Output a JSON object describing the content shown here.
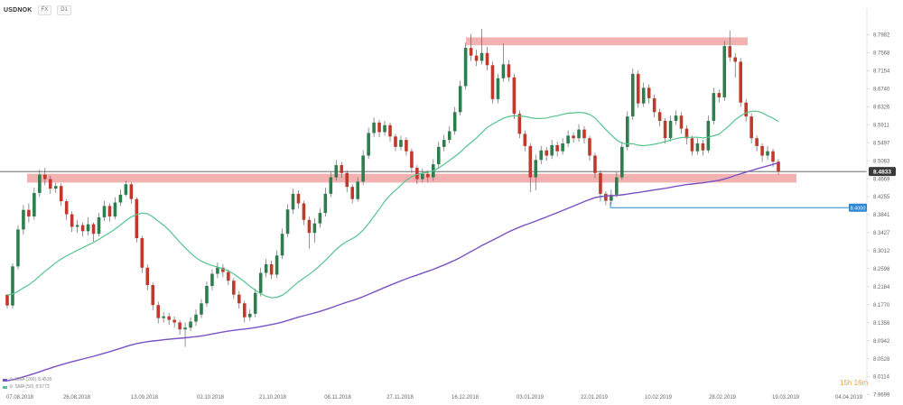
{
  "toolbar": {
    "symbol": "USDNOK",
    "timeframe": "D1",
    "mode_label": "FX"
  },
  "indicators": [
    {
      "label": "SMA (200)",
      "value": "8.4535",
      "color": "#7b52c4",
      "icon": "sma-line-icon"
    },
    {
      "label": "SMA (50)",
      "value": "8.5773",
      "color": "#54c48e",
      "icon": "sma-line-icon"
    }
  ],
  "countdown": "15h 16m",
  "chart_data": {
    "type": "candlestick",
    "symbol": "USDNOK",
    "y_axis_ticks": [
      "8.7982",
      "8.7568",
      "8.7154",
      "8.6740",
      "8.6326",
      "8.5911",
      "8.5497",
      "8.5083",
      "8.4669",
      "8.4255",
      "8.3841",
      "8.3427",
      "8.3012",
      "8.2598",
      "8.2184",
      "8.1770",
      "8.1356",
      "8.0942",
      "8.0528",
      "8.0114",
      "7.9699"
    ],
    "ylim": [
      7.9699,
      8.8189
    ],
    "x_axis_labels": [
      "07.08.2018",
      "26.08.2018",
      "13.09.2018",
      "02.10.2018",
      "21.10.2018",
      "08.11.2018",
      "27.11.2018",
      "16.12.2018",
      "03.01.2019",
      "22.01.2019",
      "10.02.2019",
      "28.02.2019",
      "19.03.2019",
      "04.04.2019"
    ],
    "last_price": {
      "value": "8.4833",
      "color": "#3a3a3a"
    },
    "level_marker": {
      "value": "8.4000",
      "color": "#2e86d4",
      "from_date": "22.01.2019"
    },
    "colors": {
      "up": "#2e7d4f",
      "down": "#c0392b",
      "sma50": "#54c48e",
      "sma200": "#7b52c4",
      "zone": "#f2a3a3"
    },
    "resistance_zone": {
      "from": 8.778,
      "to": 8.79,
      "from_date": "16.12.2018",
      "to_date": "01.03.2019"
    },
    "support_zone": {
      "from": 8.462,
      "to": 8.476,
      "from_date": "07.08.2018",
      "to_date": "20.03.2019"
    },
    "ohlc": [
      [
        8.2,
        8.175,
        8.2,
        8.168
      ],
      [
        8.175,
        8.265,
        8.272,
        8.168
      ],
      [
        8.265,
        8.35,
        8.36,
        8.258
      ],
      [
        8.35,
        8.395,
        8.406,
        8.338
      ],
      [
        8.395,
        8.38,
        8.41,
        8.366
      ],
      [
        8.38,
        8.434,
        8.446,
        8.372
      ],
      [
        8.434,
        8.476,
        8.488,
        8.425
      ],
      [
        8.476,
        8.466,
        8.492,
        8.452
      ],
      [
        8.466,
        8.444,
        8.474,
        8.432
      ],
      [
        8.444,
        8.45,
        8.458,
        8.434
      ],
      [
        8.45,
        8.415,
        8.456,
        8.404
      ],
      [
        8.415,
        8.385,
        8.42,
        8.372
      ],
      [
        8.385,
        8.356,
        8.392,
        8.344
      ],
      [
        8.356,
        8.36,
        8.372,
        8.342
      ],
      [
        8.36,
        8.346,
        8.366,
        8.334
      ],
      [
        8.346,
        8.362,
        8.378,
        8.336
      ],
      [
        8.362,
        8.34,
        8.366,
        8.322
      ],
      [
        8.34,
        8.378,
        8.388,
        8.334
      ],
      [
        8.378,
        8.404,
        8.416,
        8.37
      ],
      [
        8.404,
        8.38,
        8.41,
        8.368
      ],
      [
        8.38,
        8.412,
        8.424,
        8.374
      ],
      [
        8.412,
        8.43,
        8.442,
        8.404
      ],
      [
        8.43,
        8.454,
        8.462,
        8.426
      ],
      [
        8.454,
        8.42,
        8.458,
        8.41
      ],
      [
        8.42,
        8.33,
        8.424,
        8.32
      ],
      [
        8.33,
        8.262,
        8.336,
        8.25
      ],
      [
        8.262,
        8.222,
        8.27,
        8.21
      ],
      [
        8.222,
        8.176,
        8.228,
        8.164
      ],
      [
        8.176,
        8.146,
        8.184,
        8.134
      ],
      [
        8.146,
        8.15,
        8.16,
        8.136
      ],
      [
        8.15,
        8.142,
        8.158,
        8.13
      ],
      [
        8.142,
        8.136,
        8.15,
        8.124
      ],
      [
        8.136,
        8.12,
        8.142,
        8.108
      ],
      [
        8.12,
        8.124,
        8.136,
        8.08
      ],
      [
        8.124,
        8.138,
        8.148,
        8.116
      ],
      [
        8.138,
        8.154,
        8.166,
        8.128
      ],
      [
        8.154,
        8.18,
        8.19,
        8.146
      ],
      [
        8.18,
        8.22,
        8.23,
        8.172
      ],
      [
        8.22,
        8.248,
        8.258,
        8.21
      ],
      [
        8.248,
        8.262,
        8.274,
        8.238
      ],
      [
        8.262,
        8.252,
        8.27,
        8.24
      ],
      [
        8.252,
        8.232,
        8.258,
        8.222
      ],
      [
        8.232,
        8.2,
        8.238,
        8.19
      ],
      [
        8.2,
        8.18,
        8.208,
        8.168
      ],
      [
        8.18,
        8.148,
        8.186,
        8.136
      ],
      [
        8.148,
        8.156,
        8.166,
        8.14
      ],
      [
        8.156,
        8.204,
        8.214,
        8.148
      ],
      [
        8.204,
        8.25,
        8.262,
        8.196
      ],
      [
        8.25,
        8.27,
        8.282,
        8.24
      ],
      [
        8.27,
        8.246,
        8.278,
        8.236
      ],
      [
        8.246,
        8.29,
        8.302,
        8.238
      ],
      [
        8.29,
        8.34,
        8.352,
        8.282
      ],
      [
        8.34,
        8.396,
        8.408,
        8.332
      ],
      [
        8.396,
        8.432,
        8.444,
        8.386
      ],
      [
        8.432,
        8.41,
        8.44,
        8.398
      ],
      [
        8.41,
        8.372,
        8.416,
        8.36
      ],
      [
        8.372,
        8.342,
        8.38,
        8.306
      ],
      [
        8.342,
        8.364,
        8.376,
        8.32
      ],
      [
        8.364,
        8.388,
        8.398,
        8.354
      ],
      [
        8.388,
        8.432,
        8.446,
        8.38
      ],
      [
        8.432,
        8.47,
        8.482,
        8.424
      ],
      [
        8.47,
        8.498,
        8.51,
        8.462
      ],
      [
        8.498,
        8.48,
        8.506,
        8.468
      ],
      [
        8.48,
        8.448,
        8.486,
        8.436
      ],
      [
        8.448,
        8.42,
        8.454,
        8.41
      ],
      [
        8.42,
        8.46,
        8.47,
        8.414
      ],
      [
        8.46,
        8.52,
        8.532,
        8.452
      ],
      [
        8.52,
        8.572,
        8.584,
        8.512
      ],
      [
        8.572,
        8.596,
        8.608,
        8.562
      ],
      [
        8.596,
        8.574,
        8.602,
        8.562
      ],
      [
        8.574,
        8.59,
        8.6,
        8.566
      ],
      [
        8.59,
        8.564,
        8.596,
        8.552
      ],
      [
        8.564,
        8.54,
        8.57,
        8.53
      ],
      [
        8.54,
        8.556,
        8.566,
        8.532
      ],
      [
        8.556,
        8.53,
        8.562,
        8.52
      ],
      [
        8.53,
        8.492,
        8.536,
        8.48
      ],
      [
        8.492,
        8.466,
        8.498,
        8.454
      ],
      [
        8.466,
        8.478,
        8.49,
        8.458
      ],
      [
        8.478,
        8.47,
        8.486,
        8.458
      ],
      [
        8.47,
        8.5,
        8.512,
        8.462
      ],
      [
        8.5,
        8.54,
        8.552,
        8.492
      ],
      [
        8.54,
        8.556,
        8.568,
        8.53
      ],
      [
        8.556,
        8.576,
        8.588,
        8.548
      ],
      [
        8.576,
        8.62,
        8.632,
        8.568
      ],
      [
        8.62,
        8.68,
        8.692,
        8.612
      ],
      [
        8.68,
        8.768,
        8.78,
        8.672
      ],
      [
        8.768,
        8.75,
        8.8,
        8.738
      ],
      [
        8.75,
        8.738,
        8.764,
        8.726
      ],
      [
        8.738,
        8.756,
        8.812,
        8.73
      ],
      [
        8.756,
        8.728,
        8.77,
        8.716
      ],
      [
        8.728,
        8.65,
        8.736,
        8.64
      ],
      [
        8.65,
        8.698,
        8.708,
        8.64
      ],
      [
        8.698,
        8.73,
        8.778,
        8.69
      ],
      [
        8.73,
        8.7,
        8.74,
        8.69
      ],
      [
        8.7,
        8.616,
        8.708,
        8.604
      ],
      [
        8.616,
        8.57,
        8.624,
        8.56
      ],
      [
        8.57,
        8.542,
        8.578,
        8.53
      ],
      [
        8.542,
        8.47,
        8.548,
        8.436
      ],
      [
        8.47,
        8.51,
        8.522,
        8.44
      ],
      [
        8.51,
        8.532,
        8.542,
        8.5
      ],
      [
        8.532,
        8.52,
        8.54,
        8.508
      ],
      [
        8.52,
        8.544,
        8.556,
        8.512
      ],
      [
        8.544,
        8.53,
        8.552,
        8.518
      ],
      [
        8.53,
        8.548,
        8.56,
        8.522
      ],
      [
        8.548,
        8.566,
        8.578,
        8.54
      ],
      [
        8.566,
        8.56,
        8.574,
        8.55
      ],
      [
        8.56,
        8.58,
        8.592,
        8.552
      ],
      [
        8.58,
        8.56,
        8.588,
        8.548
      ],
      [
        8.56,
        8.52,
        8.566,
        8.508
      ],
      [
        8.52,
        8.48,
        8.526,
        8.468
      ],
      [
        8.48,
        8.432,
        8.486,
        8.414
      ],
      [
        8.432,
        8.416,
        8.438,
        8.406
      ],
      [
        8.416,
        8.43,
        8.442,
        8.408
      ],
      [
        8.43,
        8.47,
        8.482,
        8.424
      ],
      [
        8.47,
        8.54,
        8.552,
        8.464
      ],
      [
        8.54,
        8.61,
        8.622,
        8.532
      ],
      [
        8.61,
        8.708,
        8.72,
        8.602
      ],
      [
        8.708,
        8.64,
        8.716,
        8.63
      ],
      [
        8.64,
        8.676,
        8.688,
        8.632
      ],
      [
        8.676,
        8.652,
        8.684,
        8.64
      ],
      [
        8.652,
        8.62,
        8.66,
        8.608
      ],
      [
        8.62,
        8.6,
        8.628,
        8.588
      ],
      [
        8.6,
        8.56,
        8.606,
        8.548
      ],
      [
        8.56,
        8.6,
        8.612,
        8.552
      ],
      [
        8.6,
        8.612,
        8.624,
        8.59
      ],
      [
        8.612,
        8.582,
        8.62,
        8.57
      ],
      [
        8.582,
        8.56,
        8.59,
        8.546
      ],
      [
        8.56,
        8.53,
        8.566,
        8.52
      ],
      [
        8.53,
        8.548,
        8.56,
        8.522
      ],
      [
        8.548,
        8.532,
        8.556,
        8.52
      ],
      [
        8.532,
        8.6,
        8.612,
        8.526
      ],
      [
        8.6,
        8.664,
        8.676,
        8.592
      ],
      [
        8.664,
        8.654,
        8.672,
        8.642
      ],
      [
        8.654,
        8.772,
        8.784,
        8.646
      ],
      [
        8.772,
        8.746,
        8.808,
        8.736
      ],
      [
        8.746,
        8.736,
        8.756,
        8.7
      ],
      [
        8.736,
        8.642,
        8.744,
        8.632
      ],
      [
        8.642,
        8.61,
        8.65,
        8.598
      ],
      [
        8.61,
        8.56,
        8.618,
        8.548
      ],
      [
        8.56,
        8.542,
        8.566,
        8.53
      ],
      [
        8.542,
        8.52,
        8.548,
        8.506
      ],
      [
        8.52,
        8.53,
        8.542,
        8.51
      ],
      [
        8.53,
        8.506,
        8.536,
        8.494
      ],
      [
        8.506,
        8.483,
        8.512,
        8.476
      ]
    ]
  }
}
